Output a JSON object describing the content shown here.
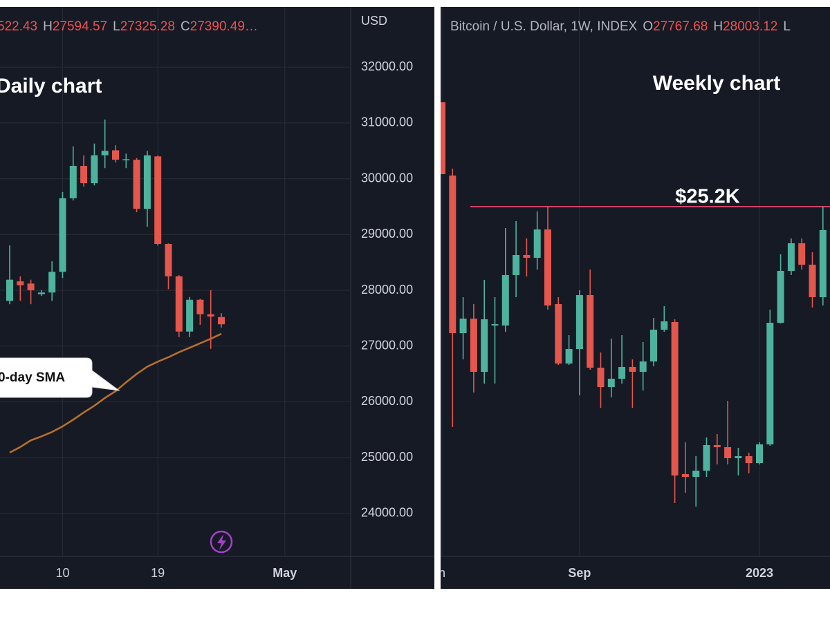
{
  "chart_data": [
    {
      "type": "candlestick",
      "title": "Daily chart",
      "axis_label": "USD",
      "header": [
        {
          "value": "522.43"
        },
        {
          "label": "H",
          "value": "27594.57"
        },
        {
          "label": "L",
          "value": "27325.28"
        },
        {
          "label": "C",
          "value": "27390.49…"
        }
      ],
      "annotation": "0-day SMA",
      "up_color": "#4db39e",
      "down_color": "#e5564d",
      "categories": [
        null,
        null,
        null,
        null,
        null,
        "10",
        null,
        null,
        null,
        null,
        null,
        null,
        null,
        null,
        "19",
        null,
        null,
        null,
        null,
        null,
        null,
        null,
        null,
        null,
        null,
        null,
        "May"
      ],
      "open": [
        27810,
        28160,
        28120,
        27930,
        27960,
        28330,
        29650,
        30230,
        29920,
        30420,
        30510,
        30330,
        30340,
        29460,
        30400,
        28830,
        28250,
        27260,
        27830,
        27570,
        27520,
        null,
        null,
        null,
        null,
        null,
        null
      ],
      "high": [
        28805,
        28250,
        28190,
        28000,
        28520,
        29760,
        30580,
        30420,
        30630,
        31060,
        30600,
        30450,
        30370,
        30500,
        30420,
        28840,
        28270,
        27880,
        27850,
        28000,
        27590,
        null,
        null,
        null,
        null,
        null,
        null
      ],
      "low": [
        27750,
        27810,
        27750,
        27900,
        27810,
        28220,
        29610,
        29860,
        29880,
        30190,
        30290,
        30190,
        29400,
        29140,
        28800,
        28020,
        27160,
        27160,
        27380,
        26950,
        27330,
        null,
        null,
        null,
        null,
        null,
        null
      ],
      "close": [
        28190,
        28090,
        28000,
        27960,
        28330,
        29650,
        30230,
        29920,
        30420,
        30500,
        30340,
        30350,
        29460,
        30420,
        28830,
        28250,
        27260,
        27830,
        27570,
        27530,
        27390,
        null,
        null,
        null,
        null,
        null,
        null
      ],
      "sma": {
        "type": "line",
        "color": "#b5702c",
        "values": [
          25090,
          25190,
          25310,
          25380,
          25460,
          25560,
          25680,
          25810,
          25930,
          26070,
          26190,
          26350,
          26500,
          26630,
          26720,
          26800,
          26890,
          26970,
          27050,
          27130,
          27220,
          null,
          null,
          null,
          null,
          null,
          null
        ]
      },
      "ylim": [
        23230,
        33080
      ],
      "yticks": [
        {
          "value": 24000,
          "label": "24000.00"
        },
        {
          "value": 25000,
          "label": "25000.00"
        },
        {
          "value": 26000,
          "label": "26000.00"
        },
        {
          "value": 27000,
          "label": "27000.00"
        },
        {
          "value": 28000,
          "label": "28000.00"
        },
        {
          "value": 29000,
          "label": "29000.00"
        },
        {
          "value": 30000,
          "label": "30000.00"
        },
        {
          "value": 31000,
          "label": "31000.00"
        },
        {
          "value": 32000,
          "label": "32000.00"
        }
      ],
      "grid": true
    },
    {
      "type": "candlestick",
      "title": "Weekly chart",
      "header": [
        {
          "symbol": "Bitcoin / U.S. Dollar, 1W, INDEX"
        },
        {
          "label": "O",
          "value": "27767.68"
        },
        {
          "label": "H",
          "value": "28003.12"
        },
        {
          "label": "L"
        }
      ],
      "up_color": "#4db39e",
      "down_color": "#e5564d",
      "hline": {
        "value": 25200,
        "label": "$25.2K",
        "color": "#d1456a"
      },
      "categories": [
        "n",
        null,
        null,
        null,
        null,
        null,
        null,
        null,
        null,
        null,
        null,
        null,
        null,
        "Sep",
        null,
        null,
        null,
        null,
        null,
        null,
        null,
        null,
        null,
        null,
        null,
        null,
        null,
        null,
        null,
        null,
        "2023",
        null,
        null,
        null,
        null,
        null,
        null
      ],
      "open": [
        28975,
        26325,
        20625,
        21150,
        19225,
        20900,
        20900,
        22725,
        23450,
        23350,
        24375,
        21675,
        19525,
        20050,
        22000,
        19375,
        18675,
        18975,
        19400,
        19225,
        19600,
        20750,
        21025,
        15525,
        15425,
        15650,
        16575,
        16500,
        16100,
        16175,
        15925,
        16600,
        21000,
        22875,
        23875,
        23100,
        21925
      ],
      "high": [
        28975,
        26575,
        21925,
        21675,
        22550,
        21925,
        24425,
        24675,
        24050,
        25025,
        25200,
        21925,
        20550,
        22175,
        22925,
        19925,
        20425,
        20550,
        19675,
        20300,
        21175,
        21600,
        21125,
        16675,
        16175,
        16850,
        16975,
        18175,
        16475,
        16300,
        16675,
        21475,
        23475,
        24050,
        24050,
        23550,
        25200
      ],
      "low": [
        26375,
        17225,
        19675,
        18475,
        18800,
        18800,
        20675,
        21925,
        22675,
        22925,
        21475,
        19475,
        19475,
        18375,
        19300,
        17925,
        18300,
        18800,
        17925,
        18550,
        19425,
        20675,
        14475,
        14850,
        14350,
        15425,
        15875,
        15875,
        15475,
        15550,
        15875,
        16550,
        20975,
        22725,
        22925,
        21550,
        21625
      ],
      "close": [
        26375,
        20625,
        21150,
        19225,
        21125,
        20950,
        22725,
        23450,
        23350,
        24375,
        21625,
        19525,
        20050,
        22000,
        19375,
        18675,
        18975,
        19400,
        19225,
        19600,
        20750,
        21050,
        15475,
        15425,
        15650,
        16575,
        16500,
        16100,
        16175,
        15925,
        16600,
        21000,
        22875,
        23875,
        23100,
        21925,
        24350
      ],
      "ylim": [
        12550,
        32425
      ],
      "grid": true
    }
  ]
}
